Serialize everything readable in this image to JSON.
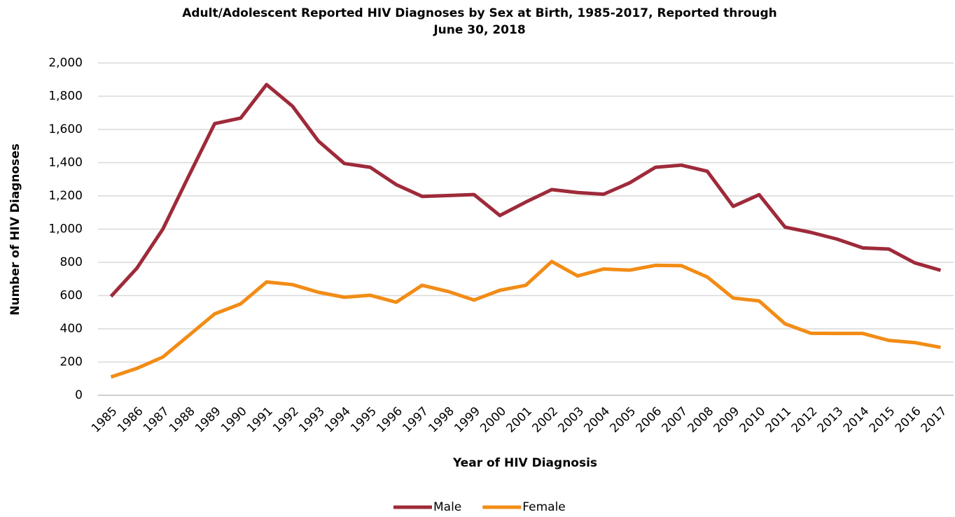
{
  "chart_data": {
    "type": "line",
    "title": [
      "Adult/Adolescent Reported HIV Diagnoses by Sex at Birth, 1985-2017, Reported through",
      "June 30, 2018"
    ],
    "x_label": "Year of HIV Diagnosis",
    "y_label": "Number of HIV Diagnoses",
    "categories": [
      "1985",
      "1986",
      "1987",
      "1988",
      "1989",
      "1990",
      "1991",
      "1992",
      "1993",
      "1994",
      "1995",
      "1996",
      "1997",
      "1998",
      "1999",
      "2000",
      "2001",
      "2002",
      "2003",
      "2004",
      "2005",
      "2006",
      "2007",
      "2008",
      "2009",
      "2010",
      "2011",
      "2012",
      "2013",
      "2014",
      "2015",
      "2016",
      "2017"
    ],
    "series": [
      {
        "name": "Male",
        "color": "#9e2a3a",
        "values": [
          595,
          765,
          1000,
          1320,
          1635,
          1668,
          1870,
          1740,
          1530,
          1395,
          1372,
          1268,
          1197,
          1202,
          1208,
          1082,
          1163,
          1238,
          1220,
          1210,
          1278,
          1372,
          1385,
          1348,
          1137,
          1207,
          1012,
          980,
          940,
          887,
          880,
          797,
          752
        ]
      },
      {
        "name": "Female",
        "color": "#f28c16",
        "values": [
          110,
          162,
          230,
          360,
          490,
          550,
          682,
          666,
          620,
          590,
          602,
          560,
          662,
          625,
          573,
          632,
          662,
          805,
          718,
          760,
          753,
          782,
          780,
          712,
          585,
          568,
          430,
          373,
          372,
          372,
          330,
          317,
          288
        ]
      }
    ],
    "ylim": [
      0,
      2000
    ],
    "yticks": [
      0,
      200,
      400,
      600,
      800,
      {
        "value": 1000,
        "label": "1,000"
      },
      {
        "value": 1200,
        "label": "1,200"
      },
      {
        "value": 1400,
        "label": "1,400"
      },
      {
        "value": 1600,
        "label": "1,600"
      },
      {
        "value": 1800,
        "label": "1,800"
      },
      {
        "value": 2000,
        "label": "2,000"
      }
    ],
    "grid": true,
    "legend": "bottom"
  }
}
